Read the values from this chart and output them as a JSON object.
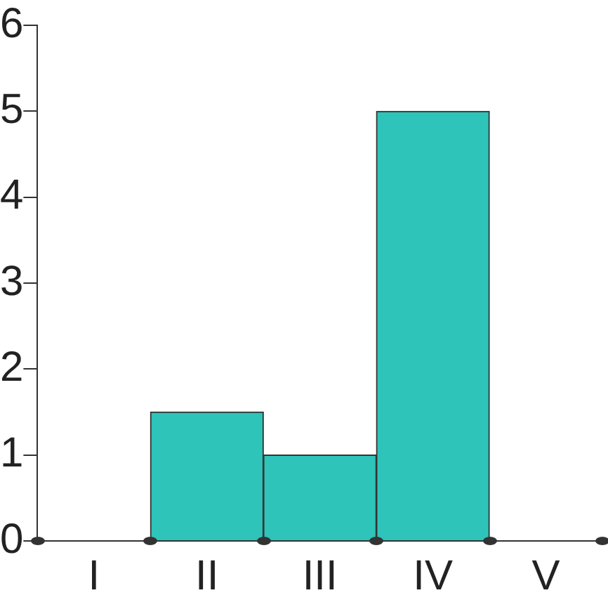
{
  "chart_data": {
    "type": "bar",
    "categories": [
      "I",
      "II",
      "III",
      "IV",
      "V"
    ],
    "values": [
      0,
      1.5,
      1,
      5,
      0
    ],
    "color": "#2ec4b9",
    "ylim": [
      0,
      6
    ],
    "yticks": [
      0,
      1,
      2,
      3,
      4,
      5,
      6
    ],
    "grid": false,
    "legend": false
  }
}
